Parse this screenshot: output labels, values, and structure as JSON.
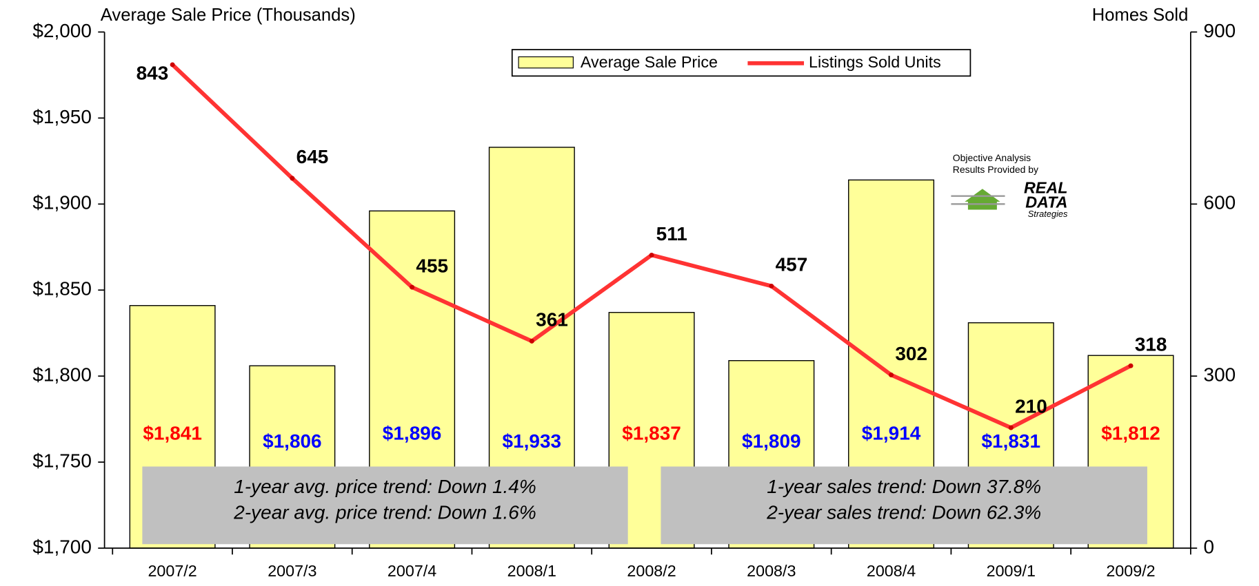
{
  "chart_data": {
    "type": "bar_line",
    "y_axis_label": "Average Sale Price (Thousands)",
    "y2_axis_label": "Homes Sold",
    "categories": [
      "2007/2",
      "2007/3",
      "2007/4",
      "2008/1",
      "2008/2",
      "2008/3",
      "2008/4",
      "2009/1",
      "2009/2"
    ],
    "series": [
      {
        "name": "Average Sale Price",
        "type": "bar",
        "color": "#ffff99",
        "values": [
          1841,
          1806,
          1896,
          1933,
          1837,
          1809,
          1914,
          1831,
          1812
        ],
        "value_labels": [
          "$1,841",
          "$1,806",
          "$1,896",
          "$1,933",
          "$1,837",
          "$1,809",
          "$1,914",
          "$1,831",
          "$1,812"
        ],
        "value_label_colors": [
          "#ff0000",
          "#0000ff",
          "#0000ff",
          "#0000ff",
          "#ff0000",
          "#0000ff",
          "#0000ff",
          "#0000ff",
          "#ff0000"
        ]
      },
      {
        "name": "Listings Sold Units",
        "type": "line",
        "axis": "y2",
        "color": "#ff3333",
        "values": [
          843,
          645,
          455,
          361,
          511,
          457,
          302,
          210,
          318
        ]
      }
    ],
    "ylim": [
      1700,
      2000
    ],
    "yticks": [
      {
        "value": 1700,
        "label": "$1,700"
      },
      {
        "value": 1750,
        "label": "$1,750"
      },
      {
        "value": 1800,
        "label": "$1,800"
      },
      {
        "value": 1850,
        "label": "$1,850"
      },
      {
        "value": 1900,
        "label": "$1,900"
      },
      {
        "value": 1950,
        "label": "$1,950"
      },
      {
        "value": 2000,
        "label": "$2,000"
      }
    ],
    "y2lim": [
      0,
      900
    ],
    "y2ticks": [
      0,
      300,
      600,
      900
    ],
    "legend": "top",
    "annotations": [
      [
        "1-year avg. price trend: Down 1.4%",
        "2-year avg. price trend: Down 1.6%"
      ],
      [
        "1-year sales trend: Down 37.8%",
        "2-year sales trend: Down 62.3%"
      ]
    ],
    "logo": {
      "lines": [
        "Objective Analysis",
        "Results Provided by"
      ],
      "brand": [
        "REAL",
        "DATA"
      ],
      "tagline": "Strategies"
    }
  }
}
